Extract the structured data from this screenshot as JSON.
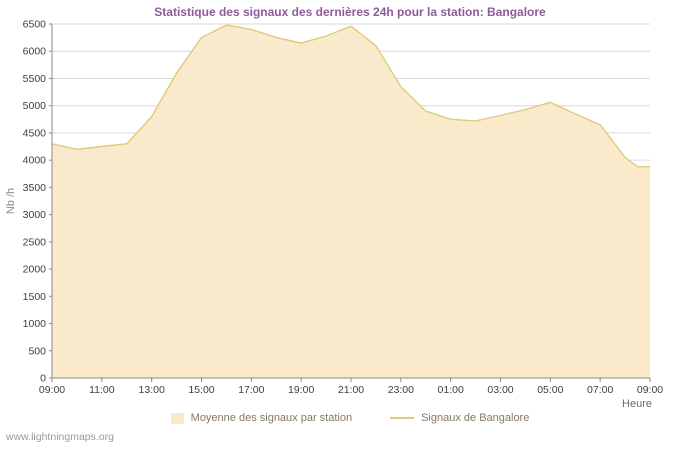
{
  "title": "Statistique des signaux des dernières 24h pour la station: Bangalore",
  "watermark": "www.lightningmaps.org",
  "colors": {
    "title": "#8f5a99",
    "area_fill": "#faeacc",
    "line": "#decb7a",
    "gridline": "#d9d9d9",
    "axis": "#888888",
    "tick_text": "#404040",
    "legend_text": "#85795f"
  },
  "chart_data": {
    "type": "area",
    "title": "Statistique des signaux des dernières 24h pour la station: Bangalore",
    "xlabel": "Heure",
    "ylabel": "Nb /h",
    "ylim": [
      0,
      6500
    ],
    "y_tick_step": 500,
    "grid": "horizontal",
    "legend_position": "bottom",
    "x_ticks": [
      "09:00",
      "11:00",
      "13:00",
      "15:00",
      "17:00",
      "19:00",
      "21:00",
      "23:00",
      "01:00",
      "03:00",
      "05:00",
      "07:00",
      "09:00"
    ],
    "x_hours": [
      0,
      1,
      2,
      3,
      4,
      5,
      6,
      7,
      8,
      9,
      10,
      11,
      12,
      13,
      14,
      15,
      16,
      17,
      18,
      19,
      20,
      21,
      22,
      23,
      23.5,
      24
    ],
    "series": [
      {
        "name": "Moyenne des signaux par station",
        "style": "area",
        "color": "#faeacc",
        "values": [
          4300,
          4200,
          4250,
          4300,
          4800,
          5600,
          6250,
          6480,
          6400,
          6250,
          6150,
          6280,
          6460,
          6100,
          5350,
          4900,
          4750,
          4720,
          4820,
          4930,
          5060,
          4850,
          4650,
          4050,
          3880,
          3880
        ]
      },
      {
        "name": "Signaux de Bangalore",
        "style": "line",
        "color": "#decb7a",
        "values": [
          4300,
          4200,
          4250,
          4300,
          4800,
          5600,
          6250,
          6480,
          6400,
          6250,
          6150,
          6280,
          6460,
          6100,
          5350,
          4900,
          4750,
          4720,
          4820,
          4930,
          5060,
          4850,
          4650,
          4050,
          3880,
          3880
        ]
      }
    ]
  }
}
